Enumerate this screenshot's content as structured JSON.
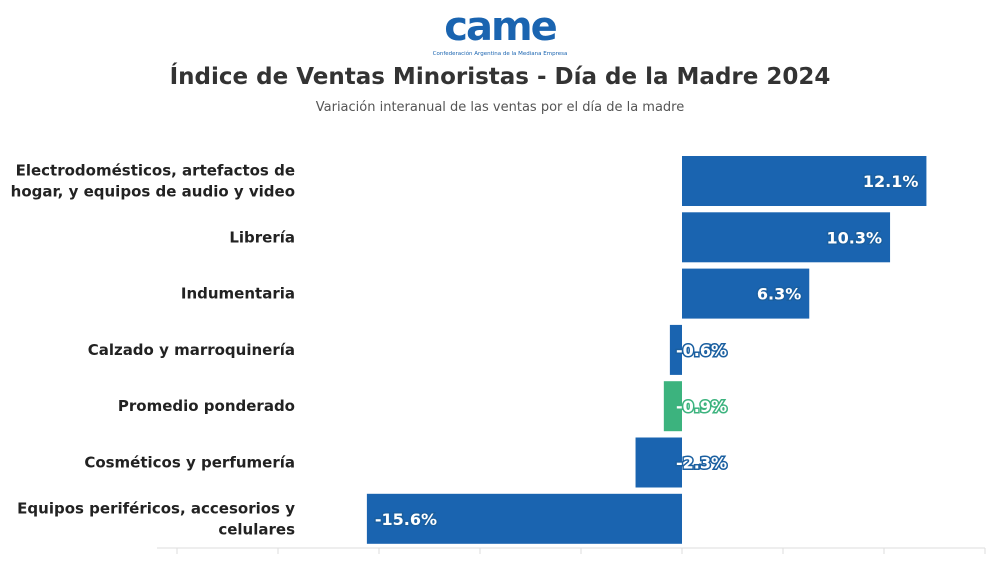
{
  "logo": {
    "text": "came",
    "tagline": "Confederación Argentina de la Mediana Empresa",
    "color": "#1a64b0"
  },
  "chart_data": {
    "type": "bar",
    "orientation": "horizontal",
    "title": "Índice de Ventas Minoristas - Día de la Madre 2024",
    "subtitle": "Variación interanual de las ventas por el día de la madre",
    "categories": [
      [
        "Electrodomésticos, artefactos de",
        "hogar, y equipos de audio y video"
      ],
      [
        "Librería"
      ],
      [
        "Indumentaria"
      ],
      [
        "Calzado y marroquinería"
      ],
      [
        "Promedio ponderado"
      ],
      [
        "Cosméticos y perfumería"
      ],
      [
        "Equipos periféricos, accesorios y",
        "celulares"
      ]
    ],
    "values": [
      12.1,
      10.3,
      6.3,
      -0.6,
      -0.9,
      -2.3,
      -15.6
    ],
    "labels": [
      "12.1%",
      "10.3%",
      "6.3%",
      "-0.6%",
      "-0.9%",
      "-2.3%",
      "-15.6%"
    ],
    "colors": [
      "#1a64b0",
      "#1a64b0",
      "#1a64b0",
      "#1a64b0",
      "#3cb37e",
      "#1a64b0",
      "#1a64b0"
    ],
    "xlim": [
      -25,
      15
    ],
    "grid": false
  }
}
